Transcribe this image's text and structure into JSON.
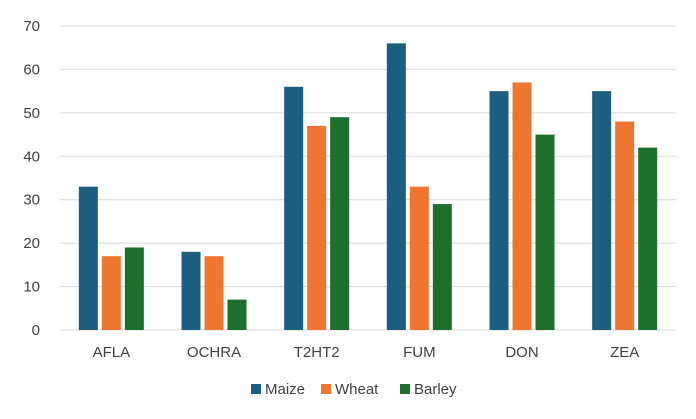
{
  "chart_data": {
    "type": "bar",
    "title": "",
    "xlabel": "",
    "ylabel": "",
    "ylim": [
      0,
      70
    ],
    "yticks": [
      0,
      10,
      20,
      30,
      40,
      50,
      60,
      70
    ],
    "grid": true,
    "legend_position": "bottom",
    "categories": [
      "AFLA",
      "OCHRA",
      "T2HT2",
      "FUM",
      "DON",
      "ZEA"
    ],
    "series": [
      {
        "name": "Maize",
        "color": "#1b5e80",
        "values": [
          33,
          18,
          56,
          66,
          55,
          55
        ]
      },
      {
        "name": "Wheat",
        "color": "#ee7631",
        "values": [
          17,
          17,
          47,
          33,
          57,
          48
        ]
      },
      {
        "name": "Barley",
        "color": "#1e6f2b",
        "values": [
          19,
          7,
          49,
          29,
          45,
          42
        ]
      }
    ]
  }
}
